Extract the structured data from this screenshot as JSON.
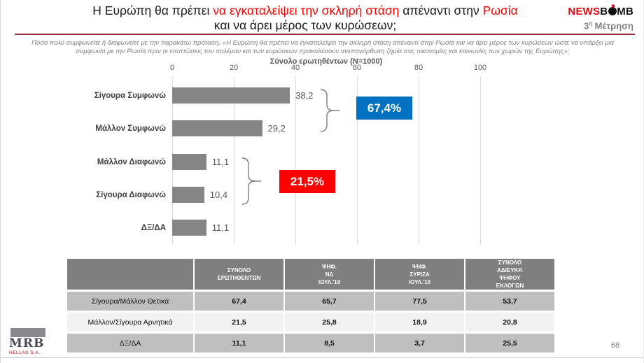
{
  "header": {
    "title_line1_parts": [
      {
        "text": "Η Ευρώπη θα πρέπει ",
        "color": "#1a1a1a"
      },
      {
        "text": "να εγκαταλείψει την σκληρή στάση",
        "color": "#ff0000"
      },
      {
        "text": " απέναντι στην ",
        "color": "#1a1a1a"
      },
      {
        "text": "Ρωσία",
        "color": "#ff0000"
      }
    ],
    "title_line2": "και να άρει μέρος των κυρώσεων;",
    "brand": {
      "news": "NEWS",
      "b": "B",
      "mb": "MB"
    },
    "measurement_num": "3",
    "measurement_sup": "η",
    "measurement_rest": " Μέτρηση"
  },
  "question": {
    "line1": "Πόσο πολύ συμφωνείτε ή διαφωνείτε με την παρακάτω πρόταση. «Η Ευρώπη θα πρέπει να εγκαταλείψει την σκληρή στάση απέναντι στην Ρωσία και να άρει μέρος των κυρώσεων ώστε να υπάρξει μια",
    "line2": "συμφωνία με την Ρωσία πριν οι επιπτώσεις του πολέμου και των κυρώσεων προκαλέσουν ανεπανόρθωτη ζημία στις οικονομίες και κοινωνίες των χωρών της Ευρώπης»;",
    "sample": "Σύνολο ερωτηθέντων (N=1000)"
  },
  "chart_data": {
    "type": "bar",
    "orientation": "horizontal",
    "title": "Η Ευρώπη θα πρέπει να εγκαταλείψει την σκληρή στάση απέναντι στην Ρωσία και να άρει μέρος των κυρώσεων;",
    "subtitle": "Σύνολο ερωτηθέντων (N=1000)",
    "categories": [
      "Σίγουρα Συμφωνώ",
      "Μάλλον Συμφωνώ",
      "Μάλλον Διαφωνώ",
      "Σίγουρα Διαφωνώ",
      "ΔΞ/ΔΑ"
    ],
    "values": [
      38.2,
      29.2,
      11.1,
      10.4,
      11.1
    ],
    "values_display": [
      "38,2",
      "29,2",
      "11,1",
      "10,4",
      "11,1"
    ],
    "x_ticks": [
      "0",
      "20",
      "40",
      "60",
      "80",
      "100"
    ],
    "xlim": [
      0,
      100
    ],
    "grid": true,
    "bar_color": "#858585",
    "groups": [
      {
        "label": "67,4%",
        "color": "#0070c0",
        "bars": "Σίγουρα Συμφωνώ + Μάλλον Συμφωνώ"
      },
      {
        "label": "21,5%",
        "color": "#fe0000",
        "bars": "Μάλλον Διαφωνώ + Σίγουρα Διαφωνώ"
      }
    ]
  },
  "table": {
    "headers": [
      [
        ""
      ],
      [
        "ΣΥΝΟΛΟ",
        "ΕΡΩΤΗΘΕΝΤΩΝ"
      ],
      [
        "ΨΗΦ.",
        "ΝΔ",
        "ΙΟΥΛ.'19"
      ],
      [
        "ΨΗΦ.",
        "ΣΥΡΙΖΑ",
        "ΙΟΥΛ.'19"
      ],
      [
        "ΣΥΝΟΛΟ",
        "ΑΔΙΕΥΚΡ.",
        "ΨΗΦΟΥ",
        "ΕΚΛΟΓΩΝ"
      ]
    ],
    "rows": [
      {
        "label": "Σίγουρα/Μάλλον Θετικά",
        "values": [
          "67,4",
          "65,7",
          "77,5",
          "53,7"
        ]
      },
      {
        "label": "Μάλλον/Σίγουρα Αρνητικά",
        "values": [
          "21,5",
          "25,8",
          "18,9",
          "20,8"
        ]
      },
      {
        "label": "ΔΞ/ΔΑ",
        "values": [
          "11,1",
          "8,5",
          "3,7",
          "25,5"
        ]
      }
    ]
  },
  "footer": {
    "logo_name": "MRB",
    "logo_sub": "HELLAS S.A.",
    "page": "68"
  }
}
